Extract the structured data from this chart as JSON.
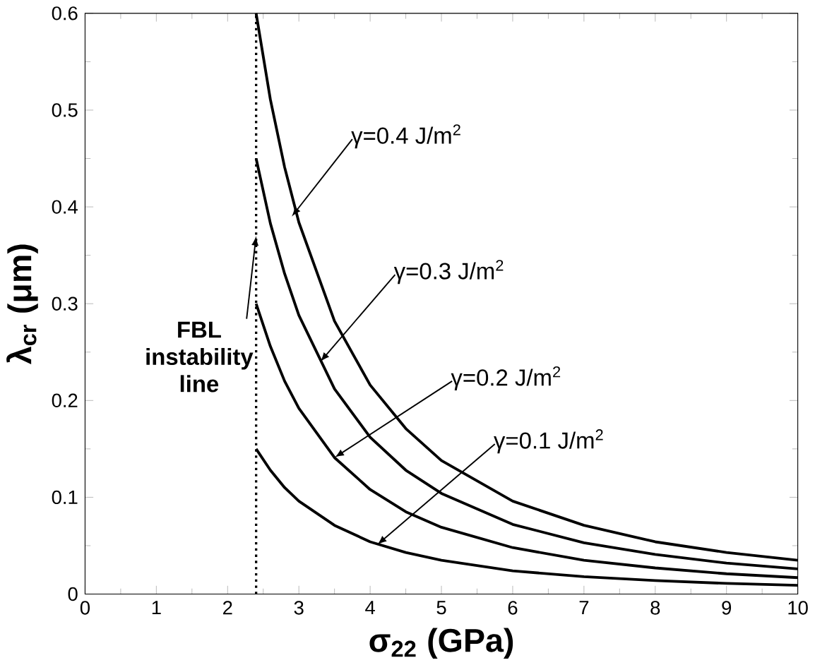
{
  "chart_data": {
    "type": "line",
    "xlabel": "σ$_{22}$ (GPa)",
    "ylabel": "λ$_{cr}$ (μm)",
    "xlim": [
      0,
      10
    ],
    "ylim": [
      0,
      0.6
    ],
    "xticks": [
      0,
      1,
      2,
      3,
      4,
      5,
      6,
      7,
      8,
      9,
      10
    ],
    "yticks": [
      0,
      0.1,
      0.2,
      0.3,
      0.4,
      0.5,
      0.6
    ],
    "marker": "none",
    "line_style": "solid",
    "x": [
      2.4,
      2.6,
      2.8,
      3,
      3.5,
      4,
      4.5,
      5,
      6,
      7,
      8,
      9,
      10
    ],
    "series": [
      {
        "color": "#000000",
        "values": [
          0.6,
          0.511,
          0.441,
          0.384,
          0.282,
          0.216,
          0.171,
          0.138,
          0.096,
          0.071,
          0.054,
          0.043,
          0.035
        ]
      },
      {
        "color": "#000000",
        "values": [
          0.45,
          0.383,
          0.331,
          0.288,
          0.212,
          0.162,
          0.128,
          0.104,
          0.072,
          0.053,
          0.041,
          0.032,
          0.026
        ]
      },
      {
        "color": "#000000",
        "values": [
          0.3,
          0.256,
          0.22,
          0.192,
          0.141,
          0.108,
          0.085,
          0.069,
          0.048,
          0.035,
          0.027,
          0.021,
          0.017
        ]
      },
      {
        "color": "#000000",
        "values": [
          0.15,
          0.128,
          0.11,
          0.096,
          0.071,
          0.054,
          0.043,
          0.035,
          0.024,
          0.018,
          0.014,
          0.011,
          0.009
        ]
      }
    ],
    "ref_lines": [
      {
        "axis": "x",
        "value": 2.4,
        "label": "FBL instability line",
        "line_style": "dotted",
        "color": "#000000"
      }
    ],
    "annotations": [
      {
        "text": "γ=0.4 J/m$^{2}$",
        "x": 2.9,
        "y": 0.39
      },
      {
        "text": "γ=0.3 J/m$^{2}$",
        "x": 3.3,
        "y": 0.24
      },
      {
        "text": "γ=0.2 J/m$^{2}$",
        "x": 3.5,
        "y": 0.141
      },
      {
        "text": "γ=0.1 J/m$^{2}$",
        "x": 4.1,
        "y": 0.051
      }
    ]
  }
}
